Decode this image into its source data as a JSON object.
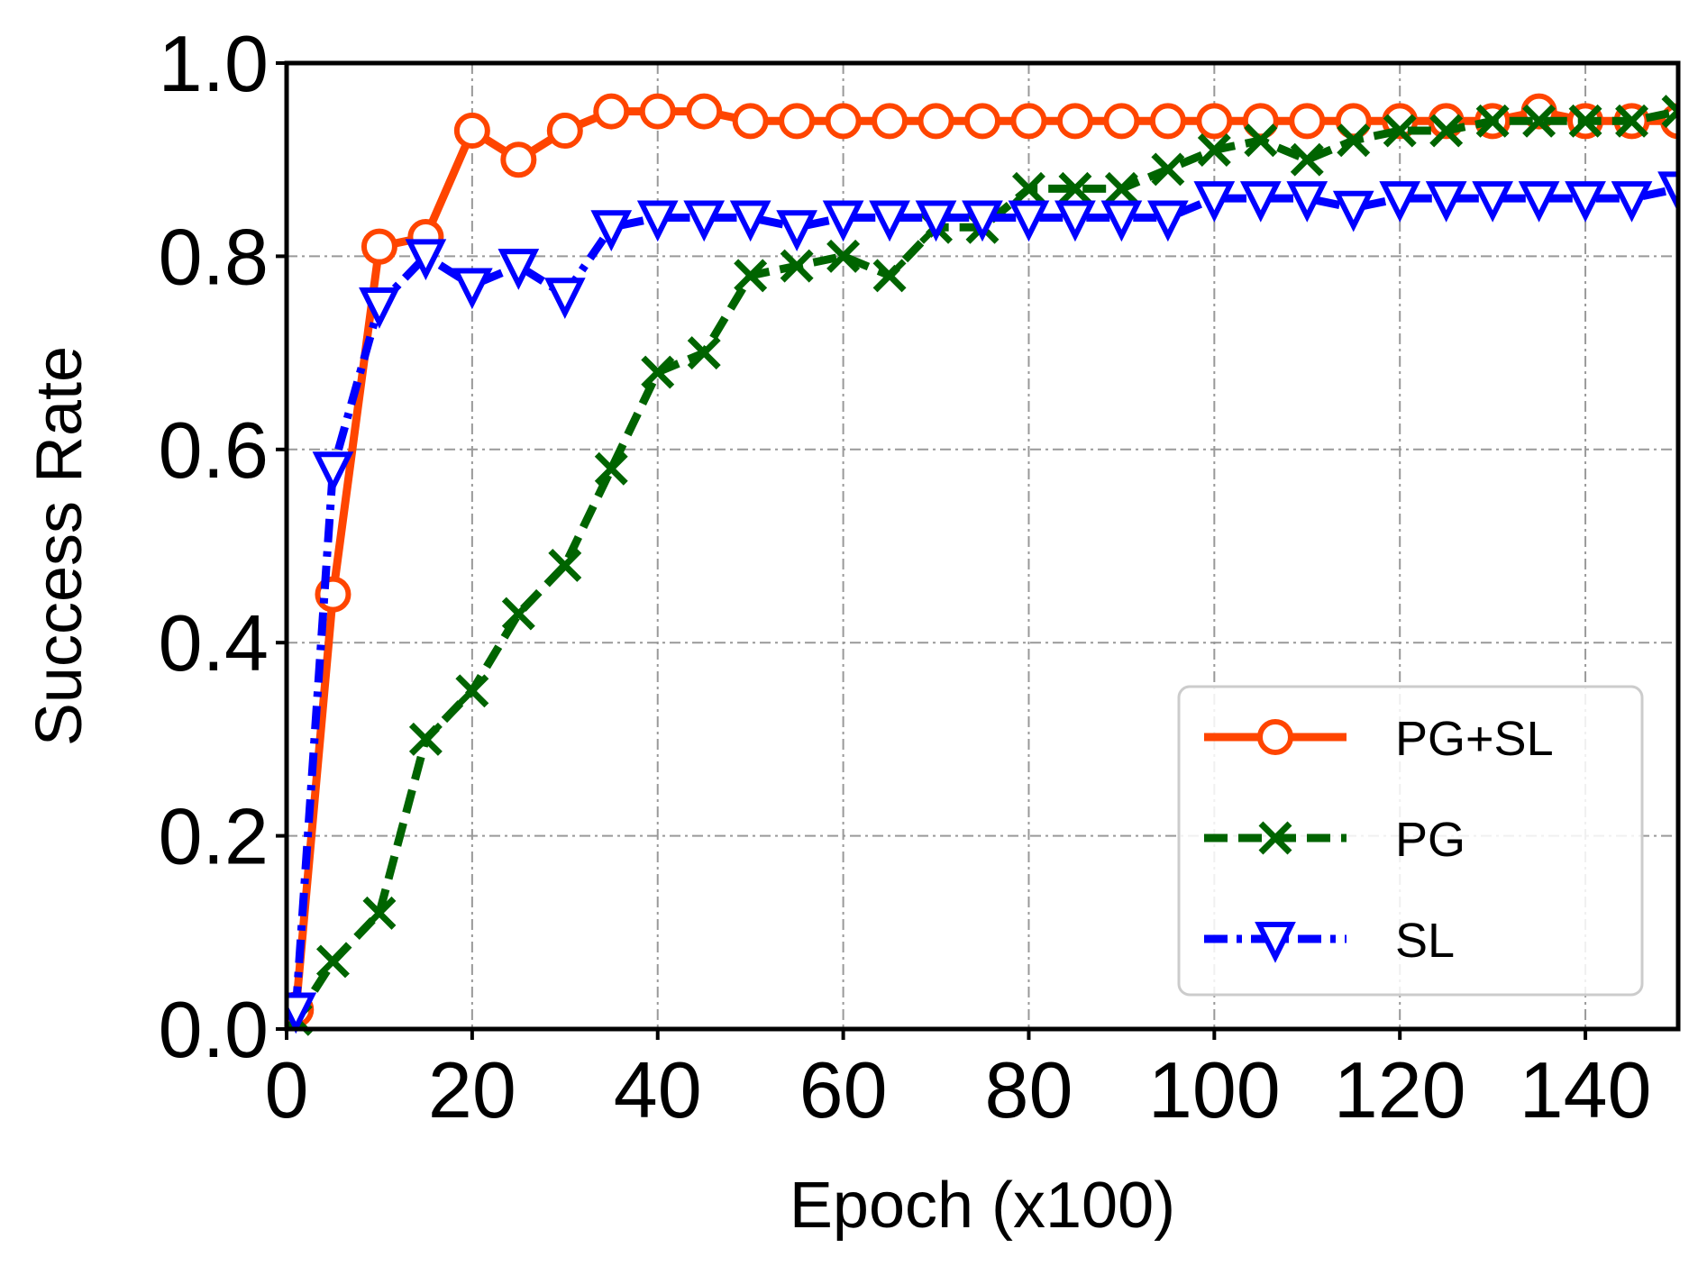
{
  "chart_data": {
    "type": "line",
    "title": "",
    "xlabel": "Epoch (x100)",
    "ylabel": "Success Rate",
    "xlim": [
      0,
      150
    ],
    "ylim": [
      0.0,
      1.0
    ],
    "xticks": [
      "0",
      "20",
      "40",
      "60",
      "80",
      "100",
      "120",
      "140"
    ],
    "xtick_values": [
      0,
      20,
      40,
      60,
      80,
      100,
      120,
      140
    ],
    "yticks": [
      "0.0",
      "0.2",
      "0.4",
      "0.6",
      "0.8",
      "1.0"
    ],
    "ytick_values": [
      0.0,
      0.2,
      0.4,
      0.6,
      0.8,
      1.0
    ],
    "grid": true,
    "legend_position": "lower-right",
    "series": [
      {
        "name": "PG+SL",
        "color": "#FF4500",
        "line_style": "solid",
        "marker": "circle",
        "x": [
          1,
          5,
          10,
          15,
          20,
          25,
          30,
          35,
          40,
          45,
          50,
          55,
          60,
          65,
          70,
          75,
          80,
          85,
          90,
          95,
          100,
          105,
          110,
          115,
          120,
          125,
          130,
          135,
          140,
          145,
          150
        ],
        "y": [
          0.02,
          0.45,
          0.81,
          0.82,
          0.93,
          0.9,
          0.93,
          0.95,
          0.95,
          0.95,
          0.94,
          0.94,
          0.94,
          0.94,
          0.94,
          0.94,
          0.94,
          0.94,
          0.94,
          0.94,
          0.94,
          0.94,
          0.94,
          0.94,
          0.94,
          0.94,
          0.94,
          0.95,
          0.94,
          0.94,
          0.94
        ]
      },
      {
        "name": "PG",
        "color": "#006400",
        "line_style": "dashed",
        "marker": "x",
        "x": [
          1,
          5,
          10,
          15,
          20,
          25,
          30,
          35,
          40,
          45,
          50,
          55,
          60,
          65,
          70,
          75,
          80,
          85,
          90,
          95,
          100,
          105,
          110,
          115,
          120,
          125,
          130,
          135,
          140,
          145,
          150
        ],
        "y": [
          0.01,
          0.07,
          0.12,
          0.3,
          0.35,
          0.43,
          0.48,
          0.58,
          0.68,
          0.7,
          0.78,
          0.79,
          0.8,
          0.78,
          0.83,
          0.83,
          0.87,
          0.87,
          0.87,
          0.89,
          0.91,
          0.92,
          0.9,
          0.92,
          0.93,
          0.93,
          0.94,
          0.94,
          0.94,
          0.94,
          0.95
        ]
      },
      {
        "name": "SL",
        "color": "#0000FF",
        "line_style": "dashdot",
        "marker": "triangle-down",
        "x": [
          1,
          5,
          10,
          15,
          20,
          25,
          30,
          35,
          40,
          45,
          50,
          55,
          60,
          65,
          70,
          75,
          80,
          85,
          90,
          95,
          100,
          105,
          110,
          115,
          120,
          125,
          130,
          135,
          140,
          145,
          150
        ],
        "y": [
          0.02,
          0.58,
          0.75,
          0.8,
          0.77,
          0.79,
          0.76,
          0.83,
          0.84,
          0.84,
          0.84,
          0.83,
          0.84,
          0.84,
          0.84,
          0.84,
          0.84,
          0.84,
          0.84,
          0.84,
          0.86,
          0.86,
          0.86,
          0.85,
          0.86,
          0.86,
          0.86,
          0.86,
          0.86,
          0.86,
          0.87
        ]
      }
    ]
  }
}
